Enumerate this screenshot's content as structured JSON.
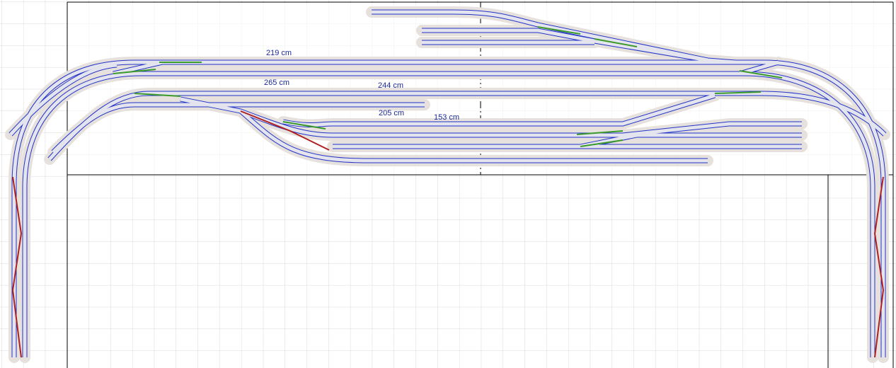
{
  "labels": [
    "219 cm",
    "265 cm",
    "244 cm",
    "205 cm",
    "153 cm"
  ]
}
